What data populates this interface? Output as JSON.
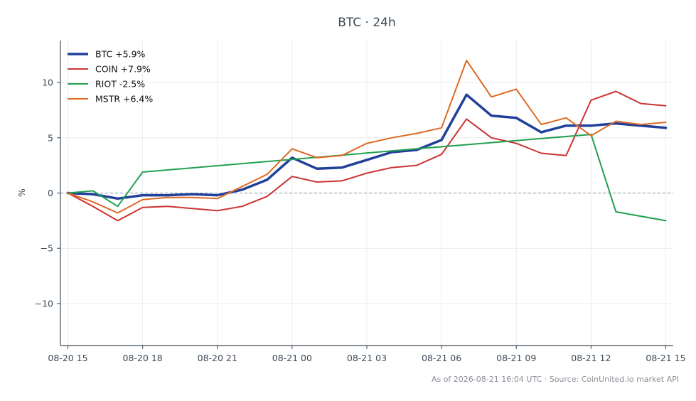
{
  "chart_data": {
    "type": "line",
    "title": "BTC · 24h",
    "ylabel": "%",
    "xlabel": "",
    "ylim": [
      -13.8,
      13.8
    ],
    "xlim": [
      -0.3,
      24.3
    ],
    "x_ticks": [
      {
        "x": 0,
        "label": "08-20 15"
      },
      {
        "x": 3,
        "label": "08-20 18"
      },
      {
        "x": 6,
        "label": "08-20 21"
      },
      {
        "x": 9,
        "label": "08-21 00"
      },
      {
        "x": 12,
        "label": "08-21 03"
      },
      {
        "x": 15,
        "label": "08-21 06"
      },
      {
        "x": 18,
        "label": "08-21 09"
      },
      {
        "x": 21,
        "label": "08-21 12"
      },
      {
        "x": 24,
        "label": "08-21 15"
      }
    ],
    "y_ticks": [
      {
        "y": 10,
        "label": "10"
      },
      {
        "y": 5,
        "label": "5"
      },
      {
        "y": 0,
        "label": "0"
      },
      {
        "y": -5,
        "label": "−5"
      },
      {
        "y": -10,
        "label": "−10"
      }
    ],
    "grid": true,
    "reference_line": 0,
    "legend_position": "top-left",
    "series": [
      {
        "name": "BTC +5.9%",
        "color": "#21409a",
        "width": 3.5,
        "x": [
          1,
          2,
          3,
          4,
          5,
          6,
          7,
          8,
          9,
          10,
          11,
          12,
          13,
          14,
          15,
          16,
          17,
          18,
          19,
          20,
          21,
          22,
          23,
          24,
          25
        ],
        "y": [
          0,
          -0.1,
          -0.5,
          -0.2,
          -0.2,
          -0.1,
          -0.2,
          0.3,
          1.2,
          3.2,
          2.2,
          2.3,
          3.0,
          3.7,
          3.9,
          4.8,
          8.9,
          7.0,
          6.8,
          5.5,
          6.1,
          6.1,
          6.3,
          6.1,
          5.9
        ]
      },
      {
        "name": "COIN +7.9%",
        "color": "#cc3333",
        "width": 2,
        "x": [
          1,
          2,
          3,
          4,
          5,
          6,
          7,
          8,
          9,
          10,
          11,
          12,
          13,
          14,
          15,
          16,
          17,
          18,
          19,
          20,
          21,
          22,
          23,
          24,
          25
        ],
        "y": [
          0,
          -1.2,
          -2.5,
          -1.3,
          -1.2,
          -1.4,
          -1.6,
          -1.2,
          -0.3,
          1.5,
          1.0,
          1.1,
          1.8,
          2.3,
          2.5,
          3.5,
          6.7,
          5.0,
          4.5,
          3.6,
          3.4,
          8.4,
          9.2,
          8.1,
          7.9
        ]
      },
      {
        "name": "RIOT -2.5%",
        "color": "#22a050",
        "width": 2,
        "x": [
          1,
          2,
          3,
          4,
          15,
          22,
          23,
          25
        ],
        "y": [
          0,
          0.2,
          -1.2,
          1.9,
          4.0,
          5.3,
          -1.7,
          -2.5
        ]
      },
      {
        "name": "MSTR +6.4%",
        "color": "#de6a24",
        "width": 2,
        "x": [
          1,
          2,
          3,
          4,
          5,
          6,
          7,
          8,
          9,
          10,
          11,
          12,
          13,
          14,
          15,
          16,
          17,
          18,
          19,
          20,
          21,
          22,
          23,
          24,
          25
        ],
        "y": [
          0,
          -0.8,
          -1.8,
          -0.6,
          -0.4,
          -0.4,
          -0.5,
          0.6,
          1.7,
          4.0,
          3.2,
          3.4,
          4.5,
          5.0,
          5.4,
          5.9,
          12.0,
          8.7,
          9.4,
          6.2,
          6.8,
          5.2,
          6.5,
          6.2,
          6.4
        ]
      }
    ]
  },
  "footer": "As of 2026-08-21 16:04 UTC · Source: CoinUnited.io market API"
}
